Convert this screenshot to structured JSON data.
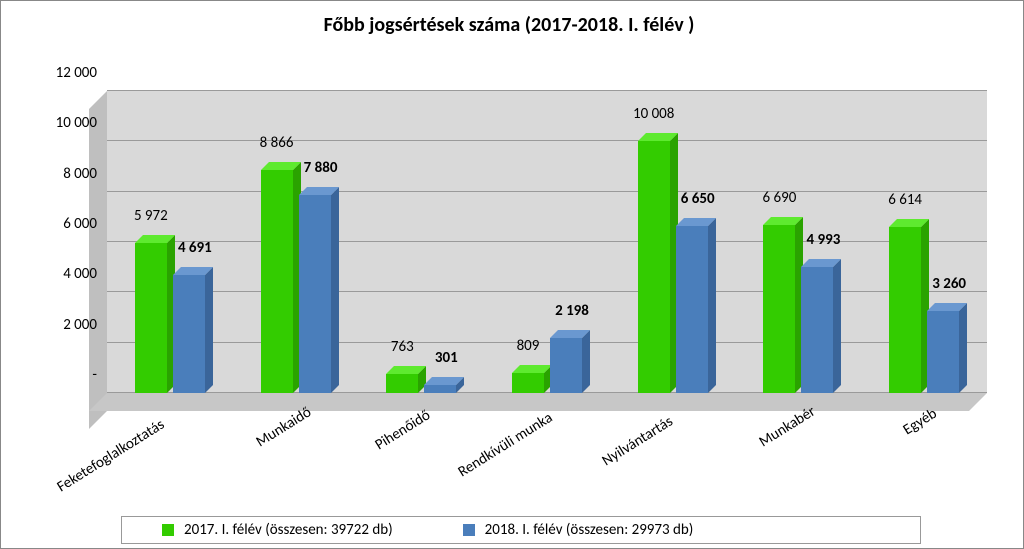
{
  "title": "Főbb jogsértések száma (2017-2018. I. félév )",
  "chart": {
    "type": "bar-3d-grouped",
    "categories": [
      "Feketefoglalkoztatás",
      "Munkaidő",
      "Pihenőidő",
      "Rendkívüli munka",
      "Nyilvántartás",
      "Munkabér",
      "Egyéb"
    ],
    "seriesA": {
      "label": "2017. I. félév (összesen: 39722 db)",
      "color": "#33cc00",
      "color_top": "#5eea2f",
      "color_side": "#2aa300",
      "values": [
        5972,
        8866,
        763,
        809,
        10008,
        6690,
        6614
      ],
      "value_labels": [
        "5 972",
        "8 866",
        "763",
        "809",
        "10 008",
        "6 690",
        "6 614"
      ]
    },
    "seriesB": {
      "label": "2018. I. félév (összesen: 29973 db)",
      "color": "#4a7ebb",
      "color_top": "#6a98d0",
      "color_side": "#3a659a",
      "values": [
        4691,
        7880,
        301,
        2198,
        6650,
        4993,
        3260
      ],
      "value_labels": [
        "4 691",
        "7 880",
        "301",
        "2 198",
        "6 650",
        "4 993",
        "3 260"
      ]
    },
    "y": {
      "min": 0,
      "max": 12000,
      "step": 2000,
      "tick_labels": [
        "-",
        "2 000",
        "4 000",
        "6 000",
        "8 000",
        "10 000",
        "12 000"
      ]
    },
    "colors": {
      "backwall": "#d9d9d9",
      "floor": "#c7c7c7",
      "grid": "#9a9a9a"
    },
    "fontsizes": {
      "title": 20,
      "tick": 15,
      "data_label": 15,
      "legend": 15
    }
  }
}
